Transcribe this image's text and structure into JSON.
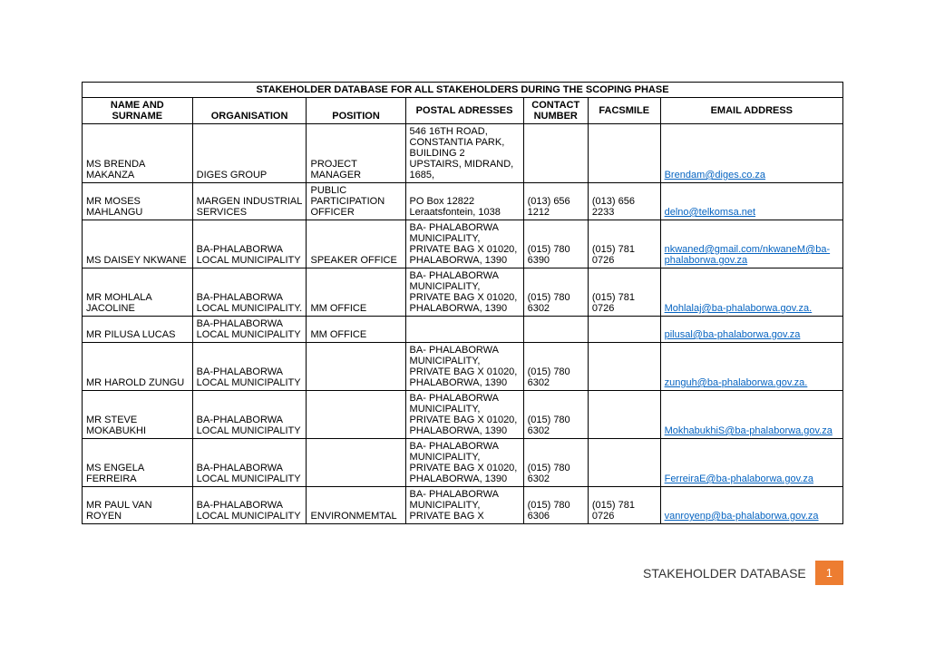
{
  "table": {
    "title": "STAKEHOLDER DATABASE FOR ALL STAKEHOLDERS DURING THE SCOPING PHASE",
    "columns": [
      "NAME AND SURNAME",
      "ORGANISATION",
      "POSITION",
      "POSTAL ADRESSES",
      "CONTACT NUMBER",
      "FACSMILE",
      "EMAIL ADDRESS"
    ],
    "rows": [
      {
        "name": "MS BRENDA MAKANZA",
        "org": "DIGES GROUP",
        "pos": "PROJECT MANAGER",
        "addr": "546 16TH ROAD, CONSTANTIA PARK, BUILDING 2 UPSTAIRS, MIDRAND, 1685,",
        "contact": "",
        "fax": "",
        "email": "Brendam@diges.co.za"
      },
      {
        "name": "MR MOSES MAHLANGU",
        "org": "MARGEN INDUSTRIAL SERVICES",
        "pos": "PUBLIC PARTICIPATION OFFICER",
        "addr": "PO Box 12822 Leraatsfontein, 1038",
        "contact": "(013) 656 1212",
        "fax": "(013) 656 2233",
        "email": "delno@telkomsa.net"
      },
      {
        "name": "MS DAISEY NKWANE",
        "org": "BA-PHALABORWA LOCAL MUNICIPALITY",
        "pos": "SPEAKER OFFICE",
        "addr": "BA- PHALABORWA MUNICIPALITY, PRIVATE BAG X 01020, PHALABORWA, 1390",
        "contact": "(015) 780 6390",
        "fax": "(015) 781 0726",
        "email": "nkwaned@gmail.com/nkwaneM@ba-phalaborwa.gov.za"
      },
      {
        "name": "MR MOHLALA JACOLINE",
        "org": "BA-PHALABORWA LOCAL MUNICIPALITY.",
        "pos": "MM OFFICE",
        "addr": "BA- PHALABORWA MUNICIPALITY, PRIVATE BAG X 01020, PHALABORWA, 1390",
        "contact": "(015) 780 6302",
        "fax": "(015) 781 0726",
        "email": "Mohlalaj@ba-phalaborwa.gov.za."
      },
      {
        "name": "MR PILUSA LUCAS",
        "org": "BA-PHALABORWA LOCAL MUNICIPALITY",
        "pos": "MM OFFICE",
        "addr": "",
        "contact": "",
        "fax": "",
        "email": "pilusal@ba-phalaborwa.gov.za"
      },
      {
        "name": "MR HAROLD ZUNGU",
        "org": "BA-PHALABORWA LOCAL MUNICIPALITY",
        "pos": "",
        "addr": "BA- PHALABORWA MUNICIPALITY, PRIVATE BAG X 01020, PHALABORWA, 1390",
        "contact": "(015) 780 6302",
        "fax": "",
        "email": "zunguh@ba-phalaborwa.gov.za."
      },
      {
        "name": "MR STEVE MOKABUKHI",
        "org": "BA-PHALABORWA LOCAL MUNICIPALITY",
        "pos": "",
        "addr": "BA- PHALABORWA MUNICIPALITY, PRIVATE BAG X 01020, PHALABORWA, 1390",
        "contact": "(015) 780 6302",
        "fax": "",
        "email": "MokhabukhiS@ba-phalaborwa.gov.za"
      },
      {
        "name": "MS ENGELA FERREIRA",
        "org": "BA-PHALABORWA LOCAL MUNICIPALITY",
        "pos": "",
        "addr": "BA- PHALABORWA MUNICIPALITY, PRIVATE BAG X 01020, PHALABORWA, 1390",
        "contact": "(015) 780 6302",
        "fax": "",
        "email": "FerreiraE@ba-phalaborwa.gov.za"
      },
      {
        "name": "MR PAUL VAN ROYEN",
        "org": "BA-PHALABORWA LOCAL MUNICIPALITY",
        "pos": "ENVIRONMEMTAL",
        "addr": "BA- PHALABORWA MUNICIPALITY, PRIVATE BAG X",
        "contact": "(015) 780 6306",
        "fax": "(015) 781 0726",
        "email": "vanroyenp@ba-phalaborwa.gov.za"
      }
    ]
  },
  "footer": {
    "label": "STAKEHOLDER DATABASE",
    "page": "1"
  },
  "style": {
    "link_color": "#0563c1",
    "accent_color": "#ed7d31",
    "background_color": "#ffffff"
  }
}
